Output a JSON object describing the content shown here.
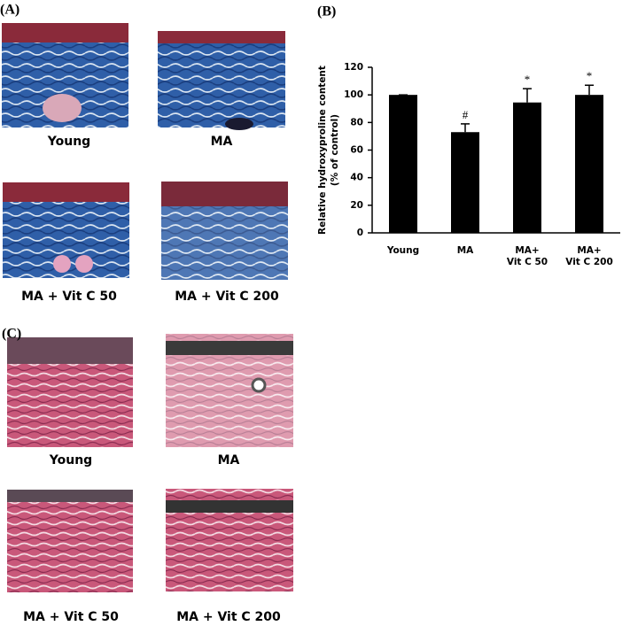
{
  "panel_a": {
    "label": "(A)",
    "captions": [
      "Young",
      "MA",
      "MA + Vit C 50",
      "MA + Vit C 200"
    ]
  },
  "panel_c": {
    "label": "(C)",
    "captions": [
      "Young",
      "MA",
      "MA + Vit C 50",
      "MA + Vit C 200"
    ]
  },
  "chart_data": {
    "type": "bar",
    "label": "(B)",
    "y_label": [
      "Relative hydroxyproline content",
      "(% of control)"
    ],
    "categories": [
      [
        "Young"
      ],
      [
        "MA"
      ],
      [
        "MA+",
        "Vit C 50"
      ],
      [
        "MA+",
        "Vit C 200"
      ]
    ],
    "values": [
      100,
      73,
      94.5,
      100
    ],
    "errors": [
      0,
      6,
      10,
      7
    ],
    "markers": [
      null,
      "#",
      "*",
      "*"
    ],
    "color": "#000000",
    "ylim": [
      0,
      120
    ],
    "yticks": [
      0,
      20,
      40,
      60,
      80,
      100,
      120
    ]
  }
}
